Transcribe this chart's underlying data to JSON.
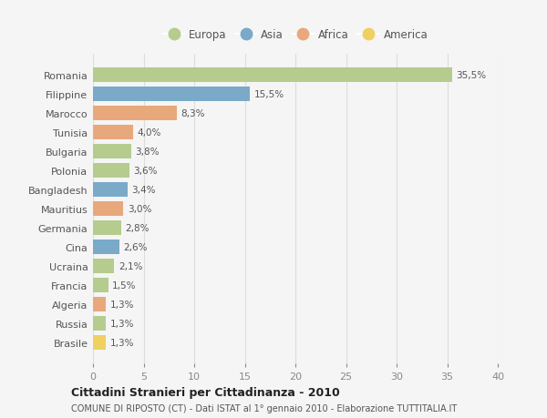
{
  "countries": [
    "Romania",
    "Filippine",
    "Marocco",
    "Tunisia",
    "Bulgaria",
    "Polonia",
    "Bangladesh",
    "Mauritius",
    "Germania",
    "Cina",
    "Ucraina",
    "Francia",
    "Algeria",
    "Russia",
    "Brasile"
  ],
  "values": [
    35.5,
    15.5,
    8.3,
    4.0,
    3.8,
    3.6,
    3.4,
    3.0,
    2.8,
    2.6,
    2.1,
    1.5,
    1.3,
    1.3,
    1.3
  ],
  "labels": [
    "35,5%",
    "15,5%",
    "8,3%",
    "4,0%",
    "3,8%",
    "3,6%",
    "3,4%",
    "3,0%",
    "2,8%",
    "2,6%",
    "2,1%",
    "1,5%",
    "1,3%",
    "1,3%",
    "1,3%"
  ],
  "continent": [
    "Europa",
    "Asia",
    "Africa",
    "Africa",
    "Europa",
    "Europa",
    "Asia",
    "Africa",
    "Europa",
    "Asia",
    "Europa",
    "Europa",
    "Africa",
    "Europa",
    "America"
  ],
  "colors": {
    "Europa": "#b5cc8e",
    "Asia": "#7aaac8",
    "Africa": "#e8a87c",
    "America": "#f0d060"
  },
  "legend_order": [
    "Europa",
    "Asia",
    "Africa",
    "America"
  ],
  "xlim": [
    0,
    40
  ],
  "xticks": [
    0,
    5,
    10,
    15,
    20,
    25,
    30,
    35,
    40
  ],
  "title": "Cittadini Stranieri per Cittadinanza - 2010",
  "subtitle": "COMUNE DI RIPOSTO (CT) - Dati ISTAT al 1° gennaio 2010 - Elaborazione TUTTITALIA.IT",
  "bg_color": "#f5f5f5",
  "grid_color": "#dddddd",
  "bar_height": 0.75
}
